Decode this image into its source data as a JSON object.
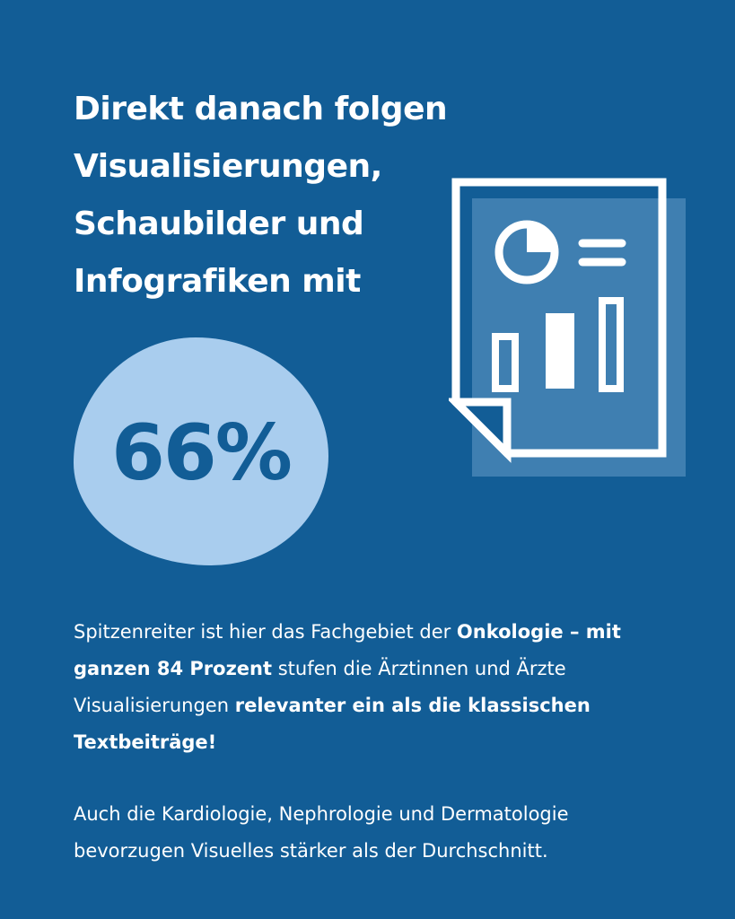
{
  "headline": {
    "line1": "Direkt danach folgen",
    "line2": "Visualisierungen,",
    "line3": "Schaubilder und",
    "line4": "Infografiken mit"
  },
  "stat": {
    "value": "66%"
  },
  "paragraph1": {
    "part1": "Spitzenreiter ist hier das Fachgebiet der ",
    "bold1": "Onkologie – mit ganzen 84 Prozent",
    "part2": " stufen die Ärztinnen und Ärzte Visualisierungen ",
    "bold2": "relevanter ein als die klassischen Textbeiträge!"
  },
  "paragraph2": {
    "text": "Auch die Kardiologie, Nephrologie und Dermatologie bevorzugen Visuelles stärker als der Durchschnitt."
  },
  "icon": {
    "name": "report-document-icon"
  },
  "colors": {
    "background": "#125d96",
    "blob": "#a9cdee",
    "icon_shadow": "#3f7fb1",
    "text": "#ffffff"
  }
}
